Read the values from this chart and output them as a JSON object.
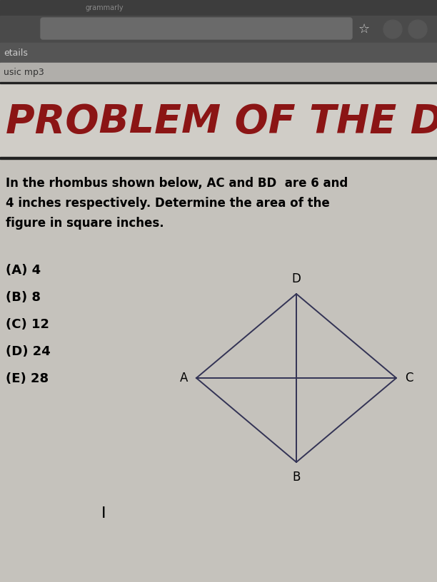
{
  "bg_color": "#c5c2bc",
  "browser_bar1_color": "#3d3d3d",
  "browser_bar2_color": "#4a4a4a",
  "browser_bar3_color": "#b0aeaa",
  "browser_text1": "etails",
  "browser_text2": "usic mp3",
  "title_text": "PROBLEM OF THE DAY",
  "title_color": "#8B1515",
  "title_bg": "#d0cdc7",
  "separator_color": "#1a1a2e",
  "problem_line1": "In the rhombus shown below, AC and BD  are 6 and",
  "problem_line2": "4 inches respectively. Determine the area of the",
  "problem_line3": "figure in square inches.",
  "choices": [
    "(A) 4",
    "(B) 8",
    "(C) 12",
    "(D) 24",
    "(E) 28"
  ],
  "rhombus_color": "#333355",
  "label_A": "A",
  "label_B": "B",
  "label_C": "C",
  "label_D": "D",
  "cursor_text": "I",
  "fig_width": 6.12,
  "fig_height": 8.16,
  "dpi": 100
}
